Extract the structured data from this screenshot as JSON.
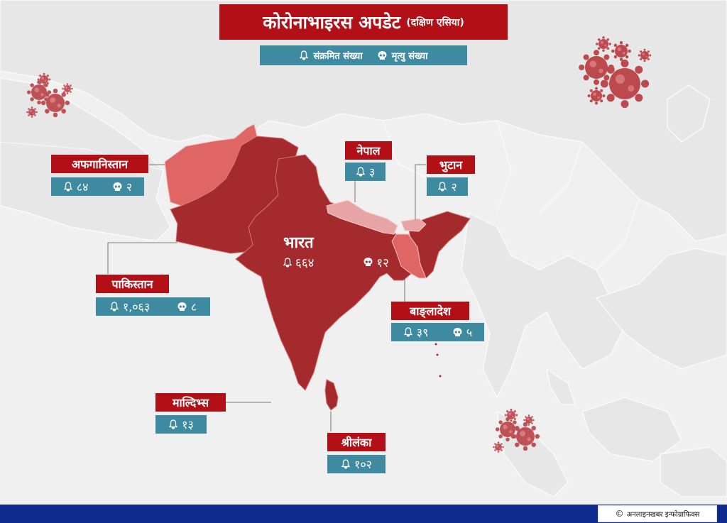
{
  "title": {
    "main": "कोरोनाभाइरस अपडेट",
    "sub": "(दक्षिण एसिया)"
  },
  "legend": {
    "infected_label": "संक्रमित संख्या",
    "infected_icon": "bell-icon",
    "deaths_label": "मृत्यु संख्या",
    "deaths_icon": "skull-icon"
  },
  "colors": {
    "title_bg": "#b30f16",
    "stat_bg": "#3e8aa0",
    "india_fill": "#a52a2e",
    "afghanistan_fill": "#e06666",
    "nepal_fill": "#e8a4a4",
    "bangladesh_fill": "#e06666",
    "footer_bar": "#0d2a8c"
  },
  "countries": {
    "afghanistan": {
      "name": "अफगानिस्तान",
      "infected": "८४",
      "deaths": "२"
    },
    "pakistan": {
      "name": "पाकिस्तान",
      "infected": "१,०६३",
      "deaths": "८"
    },
    "india": {
      "name": "भारत",
      "infected": "६६४",
      "deaths": "१२"
    },
    "nepal": {
      "name": "नेपाल",
      "infected": "३"
    },
    "bhutan": {
      "name": "भुटान",
      "infected": "२"
    },
    "bangladesh": {
      "name": "बाङ्लादेश",
      "infected": "३९",
      "deaths": "५"
    },
    "maldives": {
      "name": "माल्दिभ्स",
      "infected": "१३"
    },
    "srilanka": {
      "name": "श्रीलंका",
      "infected": "१०२"
    }
  },
  "footer": {
    "copyright_symbol": "©",
    "credit": "अनलाइनखबर इन्फोग्राफिक्स"
  }
}
